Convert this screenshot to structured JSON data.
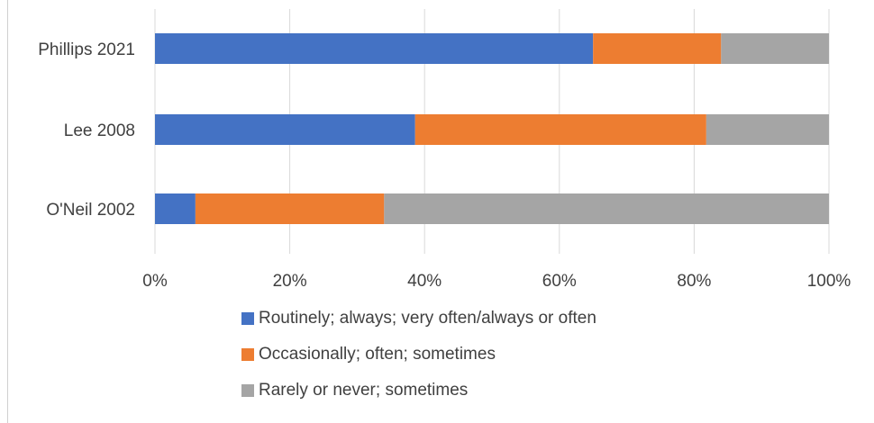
{
  "chart_data": {
    "type": "bar",
    "orientation": "horizontal",
    "stacked": "percent",
    "categories": [
      "Phillips 2021",
      "Lee 2008",
      "O'Neil 2002"
    ],
    "series": [
      {
        "name": "Routinely; always; very often/always or often",
        "color": "#4472C4",
        "values": [
          65,
          38.6,
          6
        ]
      },
      {
        "name": "Occasionally; often; sometimes",
        "color": "#ED7D31",
        "values": [
          19,
          43.2,
          28
        ]
      },
      {
        "name": "Rarely or never; sometimes",
        "color": "#A5A5A5",
        "values": [
          16,
          18.2,
          66
        ]
      }
    ],
    "x_ticks": [
      "0%",
      "20%",
      "40%",
      "60%",
      "80%",
      "100%"
    ],
    "xlim": [
      0,
      100
    ],
    "grid": true,
    "legend_position": "bottom",
    "title": "",
    "xlabel": "",
    "ylabel": ""
  }
}
